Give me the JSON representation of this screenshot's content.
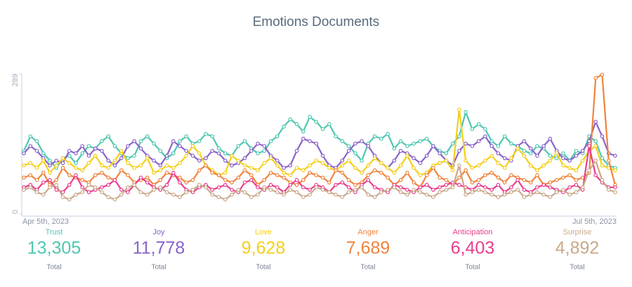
{
  "chart_data": {
    "type": "line",
    "title": "Emotions Documents",
    "categories": [
      "Apr 5th, 2023",
      null,
      null,
      null,
      null,
      null,
      null,
      null,
      null,
      null,
      null,
      null,
      null,
      null,
      null,
      null,
      null,
      null,
      null,
      null,
      null,
      null,
      null,
      null,
      null,
      null,
      null,
      null,
      null,
      null,
      null,
      null,
      null,
      null,
      null,
      null,
      null,
      null,
      null,
      null,
      null,
      null,
      null,
      null,
      null,
      null,
      null,
      null,
      null,
      null,
      null,
      null,
      null,
      null,
      null,
      null,
      null,
      null,
      null,
      null,
      null,
      null,
      null,
      null,
      null,
      null,
      null,
      null,
      null,
      null,
      null,
      null,
      null,
      null,
      null,
      null,
      null,
      null,
      null,
      null,
      null,
      null,
      null,
      null,
      null,
      null,
      null,
      null,
      null,
      null,
      null,
      "Jul 5th, 2023"
    ],
    "ylim": [
      0,
      289
    ],
    "yticks": [
      0,
      289
    ],
    "total_caption": "Total",
    "series": [
      {
        "name": "Trust",
        "color": "#4fc7b0",
        "total": {
          "value": 13305,
          "label": "13,305"
        },
        "values": [
          130,
          160,
          150,
          125,
          110,
          95,
          115,
          120,
          105,
          125,
          140,
          135,
          150,
          160,
          140,
          125,
          115,
          120,
          150,
          160,
          145,
          130,
          115,
          125,
          150,
          160,
          145,
          150,
          165,
          160,
          135,
          125,
          120,
          140,
          150,
          135,
          125,
          130,
          150,
          160,
          180,
          195,
          185,
          170,
          200,
          190,
          175,
          185,
          160,
          150,
          140,
          125,
          110,
          145,
          160,
          155,
          165,
          135,
          150,
          140,
          145,
          150,
          155,
          140,
          130,
          125,
          145,
          160,
          210,
          175,
          185,
          175,
          150,
          140,
          160,
          145,
          140,
          130,
          125,
          140,
          135,
          120,
          115,
          125,
          110,
          130,
          125,
          160,
          150,
          115,
          100,
          95
        ]
      },
      {
        "name": "Joy",
        "color": "#8a63c9",
        "total": {
          "value": 11778,
          "label": "11,778"
        },
        "values": [
          125,
          140,
          130,
          115,
          100,
          110,
          105,
          130,
          125,
          140,
          120,
          135,
          130,
          110,
          100,
          115,
          140,
          150,
          135,
          120,
          110,
          100,
          120,
          150,
          140,
          130,
          120,
          110,
          115,
          130,
          125,
          110,
          100,
          105,
          115,
          130,
          145,
          140,
          120,
          110,
          95,
          100,
          130,
          155,
          150,
          145,
          120,
          100,
          95,
          110,
          130,
          145,
          150,
          140,
          120,
          105,
          95,
          110,
          130,
          125,
          115,
          105,
          120,
          140,
          125,
          110,
          100,
          130,
          145,
          140,
          150,
          160,
          140,
          125,
          115,
          110,
          140,
          150,
          135,
          120,
          140,
          155,
          130,
          115,
          110,
          120,
          130,
          150,
          190,
          160,
          125,
          120
        ]
      },
      {
        "name": "Love",
        "color": "#f5cf1a",
        "total": {
          "value": 9628,
          "label": "9,628"
        },
        "values": [
          100,
          105,
          95,
          110,
          85,
          100,
          115,
          105,
          95,
          90,
          105,
          120,
          100,
          95,
          110,
          130,
          105,
          95,
          100,
          115,
          85,
          90,
          100,
          95,
          105,
          120,
          140,
          125,
          100,
          90,
          80,
          85,
          120,
          110,
          100,
          95,
          90,
          105,
          115,
          100,
          85,
          80,
          95,
          90,
          100,
          110,
          105,
          95,
          90,
          100,
          110,
          95,
          85,
          100,
          115,
          105,
          95,
          85,
          100,
          120,
          95,
          80,
          85,
          100,
          105,
          110,
          90,
          215,
          110,
          95,
          100,
          110,
          120,
          105,
          95,
          115,
          135,
          120,
          100,
          90,
          100,
          110,
          125,
          100,
          95,
          90,
          110,
          130,
          140,
          100,
          95,
          90
        ]
      },
      {
        "name": "Anger",
        "color": "#f0843c",
        "total": {
          "value": 7689,
          "label": "7,689"
        },
        "values": [
          75,
          80,
          70,
          85,
          60,
          70,
          95,
          80,
          75,
          70,
          65,
          80,
          85,
          75,
          70,
          90,
          80,
          65,
          70,
          75,
          60,
          70,
          85,
          80,
          75,
          65,
          70,
          90,
          100,
          85,
          80,
          70,
          65,
          75,
          90,
          80,
          60,
          70,
          85,
          80,
          75,
          65,
          60,
          70,
          85,
          80,
          75,
          65,
          90,
          85,
          70,
          60,
          65,
          80,
          90,
          85,
          75,
          60,
          70,
          85,
          65,
          55,
          80,
          95,
          75,
          70,
          60,
          75,
          90,
          65,
          70,
          80,
          85,
          75,
          65,
          80,
          75,
          70,
          65,
          80,
          60,
          65,
          70,
          75,
          80,
          70,
          75,
          85,
          280,
          287,
          110,
          60
        ]
      },
      {
        "name": "Anticipation",
        "color": "#e83e8c",
        "total": {
          "value": 6403,
          "label": "6,403"
        },
        "values": [
          55,
          60,
          50,
          65,
          70,
          50,
          45,
          60,
          80,
          55,
          45,
          50,
          55,
          60,
          70,
          50,
          45,
          60,
          75,
          65,
          55,
          50,
          60,
          85,
          65,
          50,
          45,
          55,
          60,
          50,
          55,
          60,
          50,
          45,
          65,
          70,
          55,
          50,
          60,
          55,
          45,
          60,
          70,
          55,
          50,
          60,
          55,
          45,
          60,
          65,
          55,
          45,
          60,
          70,
          55,
          50,
          45,
          60,
          55,
          50,
          45,
          55,
          60,
          50,
          55,
          60,
          65,
          60,
          55,
          50,
          60,
          55,
          50,
          60,
          45,
          55,
          70,
          50,
          45,
          55,
          60,
          55,
          50,
          45,
          55,
          60,
          50,
          140,
          80,
          65,
          55,
          55
        ]
      },
      {
        "name": "Surprise",
        "color": "#c9a98a",
        "total": {
          "value": 4892,
          "label": "4,892"
        },
        "values": [
          50,
          55,
          45,
          40,
          55,
          60,
          35,
          30,
          40,
          45,
          60,
          55,
          45,
          35,
          30,
          40,
          55,
          60,
          45,
          40,
          50,
          55,
          45,
          40,
          35,
          45,
          50,
          60,
          55,
          40,
          35,
          30,
          40,
          50,
          45,
          35,
          40,
          55,
          50,
          45,
          40,
          50,
          45,
          35,
          40,
          55,
          50,
          45,
          40,
          35,
          45,
          50,
          55,
          40,
          35,
          45,
          50,
          55,
          45,
          40,
          50,
          45,
          40,
          35,
          45,
          50,
          55,
          100,
          40,
          45,
          50,
          45,
          40,
          35,
          40,
          45,
          50,
          35,
          40,
          45,
          40,
          35,
          45,
          50,
          40,
          45,
          55,
          90,
          110,
          70,
          50,
          45
        ]
      }
    ]
  }
}
